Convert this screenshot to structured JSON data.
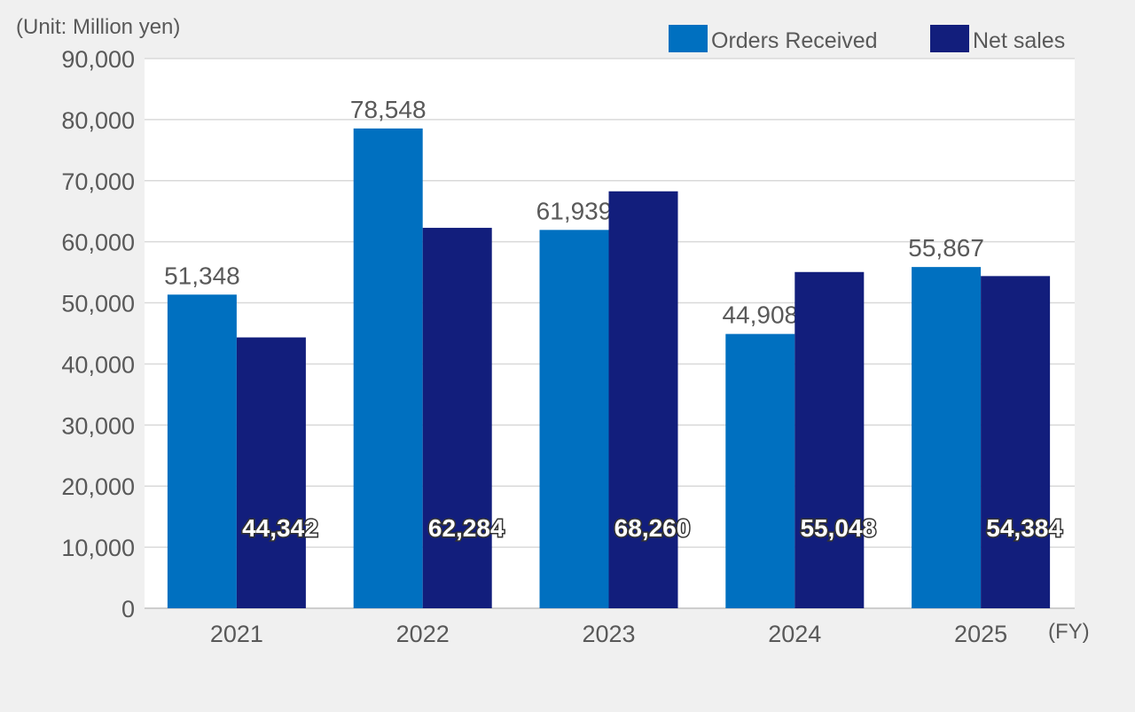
{
  "chart_data": {
    "type": "bar",
    "unit_label": "(Unit: Million yen)",
    "x_unit_label": "(FY)",
    "categories": [
      "2021",
      "2022",
      "2023",
      "2024",
      "2025"
    ],
    "series": [
      {
        "name": "Orders Received",
        "color": "#0070c0",
        "values": [
          51348,
          78548,
          61939,
          44908,
          55867
        ],
        "labels": [
          "51,348",
          "78,548",
          "61,939",
          "44,908",
          "55,867"
        ]
      },
      {
        "name": "Net sales",
        "color": "#121e7c",
        "values": [
          44342,
          62284,
          68260,
          55048,
          54384
        ],
        "labels": [
          "44,342",
          "62,284",
          "68,260",
          "55,048",
          "54,384"
        ]
      }
    ],
    "ylim": [
      0,
      90000
    ],
    "yticks": [
      0,
      10000,
      20000,
      30000,
      40000,
      50000,
      60000,
      70000,
      80000,
      90000
    ],
    "ytick_labels": [
      "0",
      "10,000",
      "20,000",
      "30,000",
      "40,000",
      "50,000",
      "60,000",
      "70,000",
      "80,000",
      "90,000"
    ],
    "grid": true,
    "legend": "top-right"
  }
}
